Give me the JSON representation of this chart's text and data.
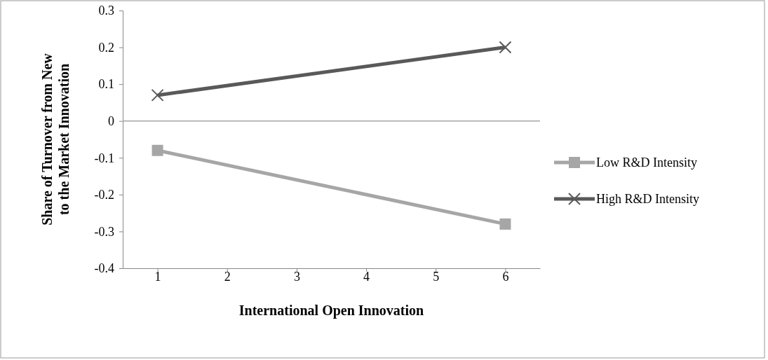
{
  "chart_data": {
    "type": "line",
    "xlabel": "International Open Innovation",
    "ylabel": "Share of Turnover from New to the Market Innovation",
    "x": [
      1,
      6
    ],
    "xlim": [
      0.5,
      6.5
    ],
    "xticks": [
      1,
      2,
      3,
      4,
      5,
      6
    ],
    "ylim": [
      -0.4,
      0.3
    ],
    "yticks": [
      -0.4,
      -0.3,
      -0.2,
      -0.1,
      0,
      0.1,
      0.2,
      0.3
    ],
    "series": [
      {
        "name": "Low R&D Intensity",
        "color": "#a6a6a6",
        "marker": "square",
        "values": [
          -0.08,
          -0.28
        ]
      },
      {
        "name": "High R&D Intensity",
        "color": "#595959",
        "marker": "cross",
        "values": [
          0.07,
          0.2
        ]
      }
    ],
    "ref_lines": [
      {
        "axis": "y",
        "value": 0,
        "color": "#a6a6a6"
      }
    ],
    "legend": "right",
    "grid": false,
    "line_style": "solid"
  }
}
